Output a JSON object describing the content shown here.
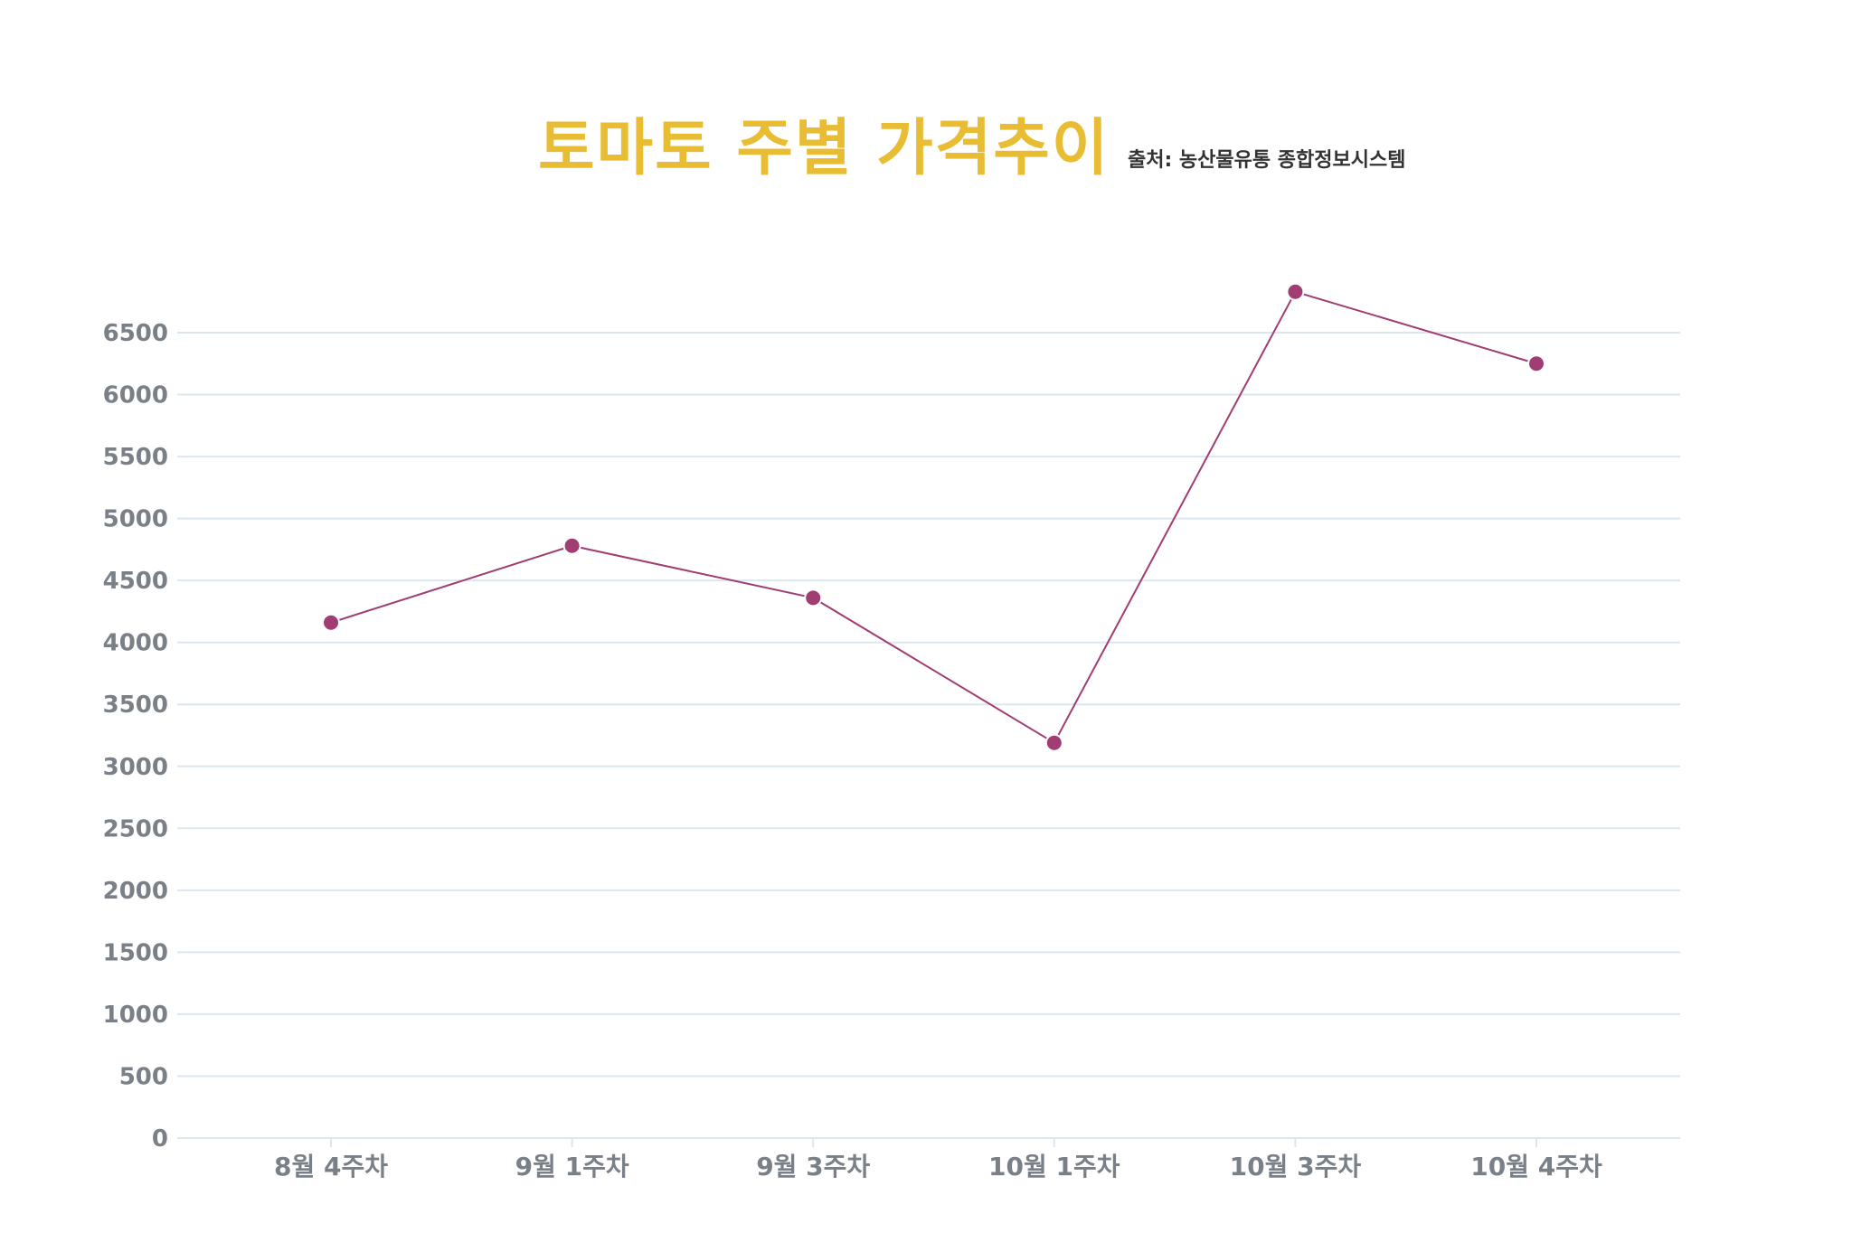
{
  "title": "토마토 주별 가격추이",
  "source": "출처: 농산물유통 종합정보시스템",
  "chart_data": {
    "type": "line",
    "title": "토마토 주별 가격추이",
    "xlabel": "",
    "ylabel": "",
    "categories": [
      "8월 4주차",
      "9월 1주차",
      "9월 3주차",
      "10월 1주차",
      "10월 3주차",
      "10월 4주차"
    ],
    "values": [
      4160,
      4780,
      4360,
      3190,
      6830,
      6250
    ],
    "y_ticks": [
      0,
      500,
      1000,
      1500,
      2000,
      2500,
      3000,
      3500,
      4000,
      4500,
      5000,
      5500,
      6000,
      6500
    ],
    "ylim": [
      0,
      6500
    ],
    "grid": true,
    "legend": "none",
    "colors": {
      "series": "#A03D72",
      "title": "#E8BD33",
      "grid": "#DCE6F0",
      "tick": "#7A8088"
    }
  }
}
